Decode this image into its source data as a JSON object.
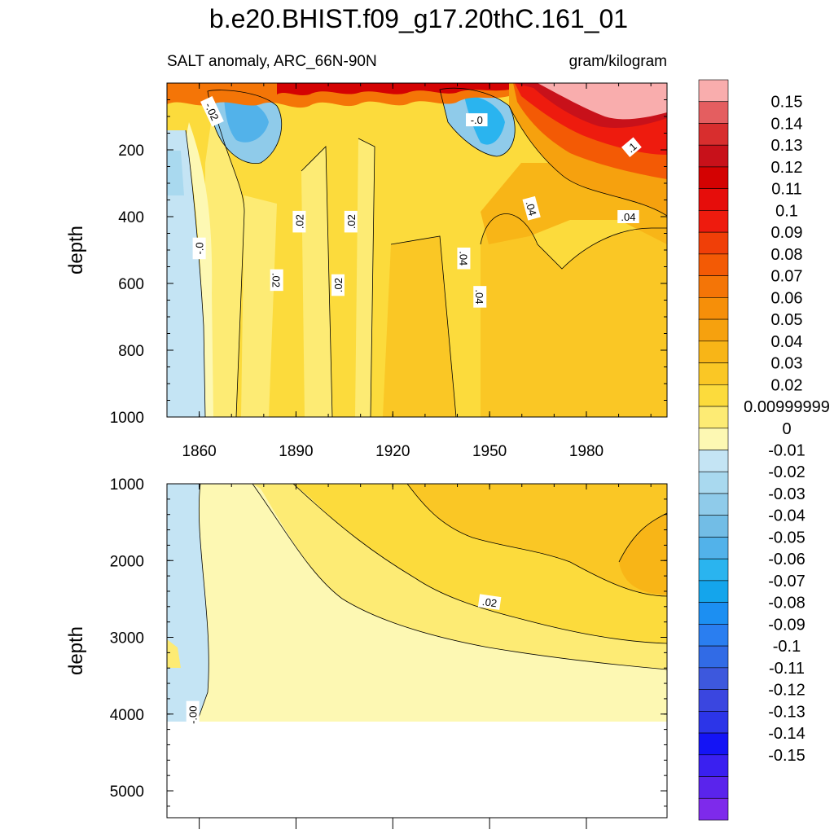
{
  "title": "b.e20.BHIST.f09_g17.20thC.161_01",
  "subtitle_left": "SALT anomaly, ARC_66N-90N",
  "subtitle_right": "gram/kilogram",
  "colors": {
    "neg": [
      "#c4e4f4",
      "#a9d9ef",
      "#8fcbea",
      "#72bde6",
      "#52b2ea",
      "#2ab4ef",
      "#14a5ec",
      "#1c8ff2",
      "#2a7ef0",
      "#316be6",
      "#3d58dd",
      "#3a46e0",
      "#2c35e8",
      "#1414f5",
      "#3a20f0",
      "#5a24ec",
      "#7e2aeb"
    ],
    "pos": [
      "#fdf8b3",
      "#fdeb74",
      "#fcdb3c",
      "#fac725",
      "#f8b517",
      "#f6a10e",
      "#f68f09",
      "#f47507",
      "#f35a05",
      "#f03f08",
      "#ee1b0e",
      "#e60d0b",
      "#d40202",
      "#c8111a",
      "#d82e2e",
      "#e45e60",
      "#f9adad"
    ]
  },
  "chart_data": [
    {
      "type": "heatmap",
      "panel": "upper",
      "xlabel": "",
      "ylabel": "depth",
      "xlim": [
        1850,
        2005
      ],
      "ylim": [
        1000,
        0
      ],
      "xticks": [
        1860,
        1890,
        1920,
        1950,
        1980
      ],
      "xtick_labels": [
        "1860",
        "1890",
        "1920",
        "1950",
        "1980"
      ],
      "yticks": [
        200,
        400,
        600,
        800,
        1000
      ],
      "ytick_labels": [
        "200",
        "400",
        "600",
        "800",
        "1000"
      ],
      "contour_labels": [
        {
          "text": "-.02",
          "x": 1864,
          "y": 85,
          "rot": 65
        },
        {
          "text": "-.0",
          "x": 1946,
          "y": 110,
          "rot": 0
        },
        {
          "text": ".1",
          "x": 1994,
          "y": 192,
          "rot": -40
        },
        {
          "text": ".02",
          "x": 1891,
          "y": 415,
          "rot": -90
        },
        {
          "text": ".02",
          "x": 1907,
          "y": 415,
          "rot": -90
        },
        {
          "text": ".04",
          "x": 1963,
          "y": 375,
          "rot": 75
        },
        {
          "text": ".04",
          "x": 1993,
          "y": 400,
          "rot": 0
        },
        {
          "text": "-.0",
          "x": 1860,
          "y": 495,
          "rot": -90
        },
        {
          "text": ".02",
          "x": 1884,
          "y": 590,
          "rot": 90
        },
        {
          "text": ".02",
          "x": 1903,
          "y": 605,
          "rot": -90
        },
        {
          "text": ".04",
          "x": 1942,
          "y": 525,
          "rot": 90
        },
        {
          "text": ".04",
          "x": 1947,
          "y": 640,
          "rot": 90
        }
      ]
    },
    {
      "type": "heatmap",
      "panel": "lower",
      "xlabel": "",
      "ylabel": "depth",
      "xlim": [
        1850,
        2005
      ],
      "ylim": [
        5350,
        1000
      ],
      "yticks": [
        1000,
        2000,
        3000,
        4000,
        5000
      ],
      "ytick_labels": [
        "1000",
        "2000",
        "3000",
        "4000",
        "5000"
      ],
      "data_extent_depth": 4120,
      "contour_labels": [
        {
          "text": ".02",
          "x": 1950,
          "y": 2540,
          "rot": 8
        },
        {
          "text": "-.00",
          "x": 1858,
          "y": 4010,
          "rot": -90
        }
      ]
    },
    {
      "type": "colorbar",
      "levels": [
        "0.15",
        "0.14",
        "0.13",
        "0.12",
        "0.11",
        "0.1",
        "0.09",
        "0.08",
        "0.07",
        "0.06",
        "0.05",
        "0.04",
        "0.03",
        "0.02",
        "0.00999999",
        "0",
        "-0.01",
        "-0.02",
        "-0.03",
        "-0.04",
        "-0.05",
        "-0.06",
        "-0.07",
        "-0.08",
        "-0.09",
        "-0.1",
        "-0.11",
        "-0.12",
        "-0.13",
        "-0.14",
        "-0.15"
      ]
    }
  ]
}
